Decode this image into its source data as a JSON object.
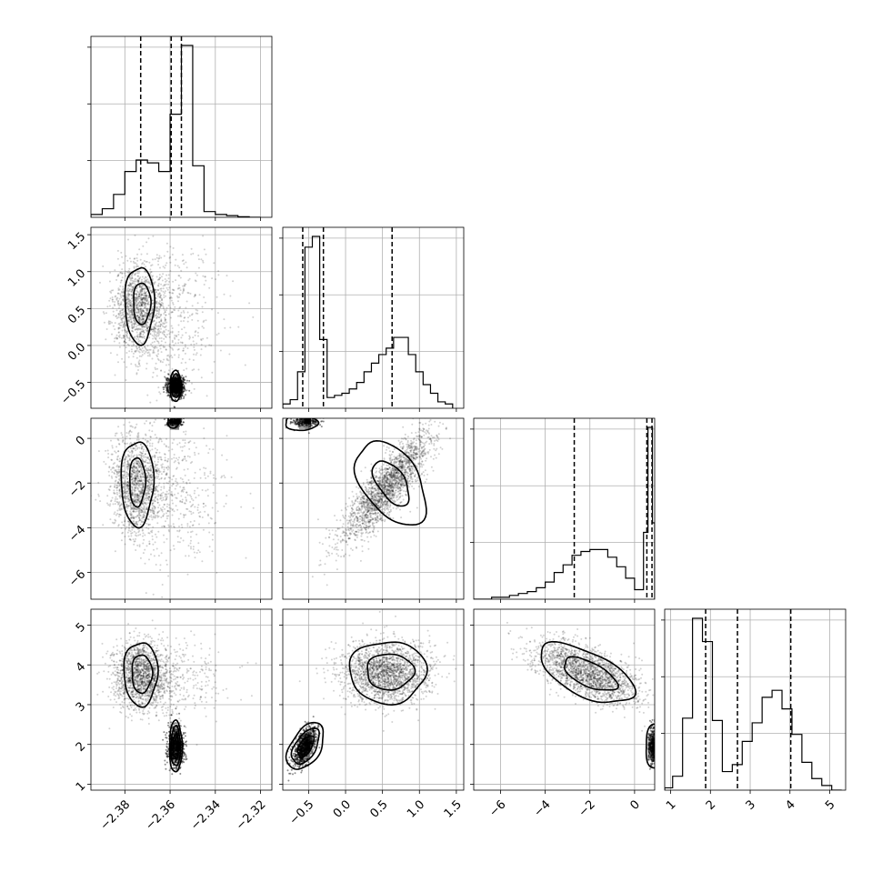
{
  "chart_data": {
    "type": "corner",
    "parameters": [
      {
        "range": [
          -2.395,
          -2.315
        ],
        "ticks": [
          -2.38,
          -2.36,
          -2.34,
          -2.32
        ],
        "tick_labels": [
          "−2.38",
          "−2.36",
          "−2.34",
          "−2.32"
        ],
        "quantiles": [
          -2.373,
          -2.3595,
          -2.355
        ]
      },
      {
        "range": [
          -0.85,
          1.6
        ],
        "ticks": [
          -0.5,
          0.0,
          0.5,
          1.0,
          1.5
        ],
        "tick_labels": [
          "−0.5",
          "0.0",
          "0.5",
          "1.0",
          "1.5"
        ],
        "quantiles": [
          -0.58,
          -0.3,
          0.63
        ]
      },
      {
        "range": [
          -7.2,
          0.9
        ],
        "ticks": [
          -6,
          -4,
          -2,
          0
        ],
        "tick_labels": [
          "−6",
          "−4",
          "−2",
          "0"
        ],
        "quantiles": [
          -2.7,
          0.55,
          0.78
        ]
      },
      {
        "range": [
          0.85,
          5.4
        ],
        "ticks": [
          1,
          2,
          3,
          4,
          5
        ],
        "tick_labels": [
          "1",
          "2",
          "3",
          "4",
          "5"
        ],
        "quantiles": [
          1.88,
          2.68,
          4.02
        ]
      }
    ],
    "histograms": [
      {
        "edges": [
          -2.395,
          -2.39,
          -2.385,
          -2.38,
          -2.375,
          -2.37,
          -2.365,
          -2.36,
          -2.355,
          -2.35,
          -2.345,
          -2.34,
          -2.335,
          -2.33,
          -2.325,
          -2.32
        ],
        "counts": [
          1,
          3,
          8,
          16,
          20,
          19,
          16,
          36,
          60,
          18,
          2,
          1,
          0.6,
          0.2,
          0
        ]
      },
      {
        "edges": [
          -0.85,
          -0.75,
          -0.65,
          -0.55,
          -0.45,
          -0.35,
          -0.25,
          -0.15,
          -0.05,
          0.05,
          0.15,
          0.25,
          0.35,
          0.45,
          0.55,
          0.65,
          0.75,
          0.85,
          0.95,
          1.05,
          1.15,
          1.25,
          1.35,
          1.45
        ],
        "counts": [
          2,
          4,
          17,
          75,
          80,
          32,
          5,
          6,
          7,
          9,
          12,
          17,
          21,
          25,
          28,
          33,
          33,
          25,
          17,
          11,
          7,
          3,
          2
        ]
      },
      {
        "edges": [
          -7.2,
          -6.8,
          -6.4,
          -6.0,
          -5.6,
          -5.2,
          -4.8,
          -4.4,
          -4.0,
          -3.6,
          -3.2,
          -2.8,
          -2.4,
          -2.0,
          -1.6,
          -1.2,
          -0.8,
          -0.4,
          0.0,
          0.4,
          0.6,
          0.8,
          0.9
        ],
        "counts": [
          0,
          0,
          1,
          1,
          2,
          3,
          4,
          6,
          9,
          14,
          18,
          23,
          25,
          26,
          26,
          22,
          17,
          11,
          5,
          35,
          90,
          40
        ]
      },
      {
        "edges": [
          0.85,
          1.05,
          1.3,
          1.55,
          1.8,
          2.05,
          2.3,
          2.55,
          2.8,
          3.05,
          3.3,
          3.55,
          3.8,
          4.05,
          4.3,
          4.55,
          4.8,
          5.05,
          5.3
        ],
        "counts": [
          1,
          6,
          31,
          74,
          64,
          30,
          8,
          11,
          21,
          29,
          40,
          43,
          35,
          24,
          12,
          5,
          2,
          0
        ]
      }
    ],
    "blobs": {
      "1_0": [
        {
          "mean": [
            -2.3735,
            0.5
          ],
          "std": [
            0.0055,
            0.3
          ],
          "rho": 0.0,
          "n": 1300
        },
        {
          "mean": [
            -2.3575,
            -0.55
          ],
          "std": [
            0.0018,
            0.07
          ],
          "rho": 0.0,
          "n": 900,
          "dense": true
        },
        {
          "mean": [
            -2.36,
            0.4
          ],
          "std": [
            0.012,
            0.5
          ],
          "rho": 0.0,
          "n": 500
        }
      ],
      "2_0": [
        {
          "mean": [
            -2.3745,
            -2.1
          ],
          "std": [
            0.0055,
            1.1
          ],
          "rho": 0.0,
          "n": 1400
        },
        {
          "mean": [
            -2.358,
            0.75
          ],
          "std": [
            0.0018,
            0.1
          ],
          "rho": 0.0,
          "n": 250,
          "dense": true
        },
        {
          "mean": [
            -2.36,
            -2.5
          ],
          "std": [
            0.012,
            1.6
          ],
          "rho": 0.0,
          "n": 500
        }
      ],
      "3_0": [
        {
          "mean": [
            -2.373,
            3.75
          ],
          "std": [
            0.006,
            0.4
          ],
          "rho": 0.0,
          "n": 1500
        },
        {
          "mean": [
            -2.3575,
            1.95
          ],
          "std": [
            0.0018,
            0.25
          ],
          "rho": 0.0,
          "n": 800,
          "dense": true
        },
        {
          "mean": [
            -2.36,
            3.6
          ],
          "std": [
            0.012,
            0.5
          ],
          "rho": 0.0,
          "n": 400
        }
      ],
      "2_1": [
        {
          "mean": [
            0.55,
            -2.2
          ],
          "std": [
            0.3,
            1.2
          ],
          "rho": 0.85,
          "n": 2200
        },
        {
          "mean": [
            -0.55,
            0.78
          ],
          "std": [
            0.09,
            0.12
          ],
          "rho": 0.0,
          "n": 250,
          "dense": true
        }
      ],
      "3_1": [
        {
          "mean": [
            0.55,
            3.8
          ],
          "std": [
            0.3,
            0.38
          ],
          "rho": 0.0,
          "n": 2000
        },
        {
          "mean": [
            -0.55,
            1.95
          ],
          "std": [
            0.08,
            0.25
          ],
          "rho": 0.6,
          "n": 800,
          "dense": true
        }
      ],
      "3_2": [
        {
          "mean": [
            -2.1,
            3.8
          ],
          "std": [
            1.2,
            0.38
          ],
          "rho": -0.6,
          "n": 2000
        },
        {
          "mean": [
            0.8,
            1.95
          ],
          "std": [
            0.08,
            0.25
          ],
          "rho": 0.0,
          "n": 300,
          "dense": true
        }
      ]
    },
    "contours": {
      "1_0": [
        {
          "cx": -2.3735,
          "cy": 0.55,
          "rx": 0.0065,
          "ry": 0.52,
          "angle": 0
        },
        {
          "cx": -2.3725,
          "cy": 0.57,
          "rx": 0.0038,
          "ry": 0.28,
          "angle": 0
        },
        {
          "cx": -2.3575,
          "cy": -0.55,
          "rx": 0.0025,
          "ry": 0.21,
          "angle": 0
        },
        {
          "cx": -2.3575,
          "cy": -0.55,
          "rx": 0.0019,
          "ry": 0.16,
          "angle": 0
        },
        {
          "cx": -2.3575,
          "cy": -0.55,
          "rx": 0.0012,
          "ry": 0.1,
          "angle": 0
        }
      ],
      "2_0": [
        {
          "cx": -2.3745,
          "cy": -2.0,
          "rx": 0.0072,
          "ry": 1.9,
          "angle": 0
        },
        {
          "cx": -2.3745,
          "cy": -1.95,
          "rx": 0.0035,
          "ry": 1.1,
          "angle": 0
        },
        {
          "cx": -2.3585,
          "cy": 0.8,
          "rx": 0.0025,
          "ry": 0.35,
          "angle": 0
        }
      ],
      "3_0": [
        {
          "cx": -2.373,
          "cy": 3.78,
          "rx": 0.0075,
          "ry": 0.8,
          "angle": 0
        },
        {
          "cx": -2.3725,
          "cy": 3.78,
          "rx": 0.0045,
          "ry": 0.48,
          "angle": 0
        },
        {
          "cx": -2.3575,
          "cy": 1.95,
          "rx": 0.0028,
          "ry": 0.65,
          "angle": 0
        },
        {
          "cx": -2.3575,
          "cy": 1.95,
          "rx": 0.0021,
          "ry": 0.5,
          "angle": 0
        },
        {
          "cx": -2.3575,
          "cy": 1.95,
          "rx": 0.0013,
          "ry": 0.3,
          "angle": 0
        }
      ],
      "2_1": [
        {
          "cx": 0.62,
          "cy": -2.0,
          "rx": 0.38,
          "ry": 2.1,
          "angle": 0.6
        },
        {
          "cx": 0.62,
          "cy": -2.0,
          "rx": 0.18,
          "ry": 1.15,
          "angle": 0.6
        },
        {
          "cx": -0.6,
          "cy": 0.7,
          "rx": 0.22,
          "ry": 0.35,
          "angle": 0
        }
      ],
      "3_1": [
        {
          "cx": 0.57,
          "cy": 3.82,
          "rx": 0.52,
          "ry": 0.78,
          "angle": 0
        },
        {
          "cx": 0.6,
          "cy": 3.83,
          "rx": 0.32,
          "ry": 0.45,
          "angle": 0
        },
        {
          "cx": -0.54,
          "cy": 1.95,
          "rx": 0.2,
          "ry": 0.65,
          "angle": -0.55
        },
        {
          "cx": -0.54,
          "cy": 1.95,
          "rx": 0.14,
          "ry": 0.5,
          "angle": -0.55
        },
        {
          "cx": -0.54,
          "cy": 1.95,
          "rx": 0.08,
          "ry": 0.3,
          "angle": -0.55
        }
      ],
      "3_2": [
        {
          "cx": -2.15,
          "cy": 3.78,
          "rx": 2.3,
          "ry": 0.55,
          "angle": -0.45
        },
        {
          "cx": -2.0,
          "cy": 3.76,
          "rx": 1.3,
          "ry": 0.3,
          "angle": -0.45
        },
        {
          "cx": 0.85,
          "cy": 1.95,
          "rx": 0.35,
          "ry": 0.55,
          "angle": 0
        }
      ]
    },
    "grid": true,
    "title": "",
    "axis_labels": []
  }
}
